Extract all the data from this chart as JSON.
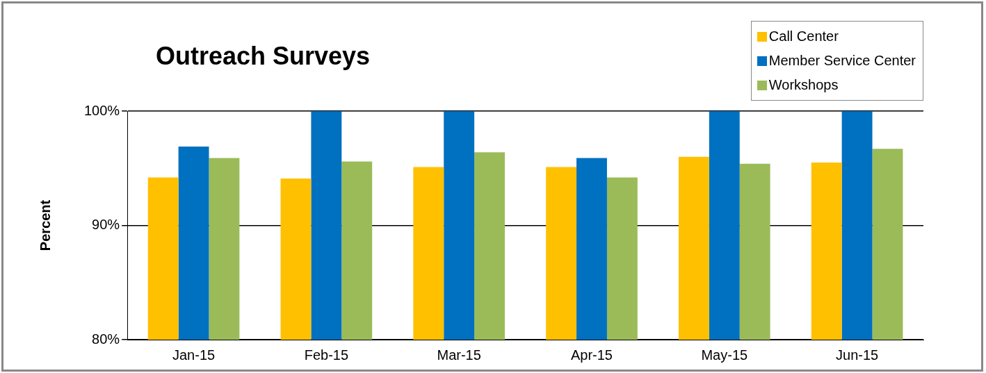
{
  "chart_data": {
    "type": "bar",
    "title": "Outreach Surveys",
    "ylabel": "Percent",
    "categories": [
      "Jan-15",
      "Feb-15",
      "Mar-15",
      "Apr-15",
      "May-15",
      "Jun-15"
    ],
    "series": [
      {
        "name": "Call Center",
        "color": "#ffc000",
        "values": [
          94.2,
          94.1,
          95.1,
          95.1,
          96.0,
          95.5
        ]
      },
      {
        "name": "Member Service Center",
        "color": "#0070c0",
        "values": [
          96.9,
          100,
          100,
          95.9,
          100,
          100
        ]
      },
      {
        "name": "Workshops",
        "color": "#9bbb59",
        "values": [
          95.9,
          95.6,
          96.4,
          94.2,
          95.4,
          96.7
        ]
      }
    ],
    "ylim": [
      80,
      100
    ],
    "yticks": [
      {
        "value": 80,
        "label": "80%"
      },
      {
        "value": 90,
        "label": "90%"
      },
      {
        "value": 100,
        "label": "100%"
      }
    ],
    "grid": "y",
    "legend": "top right"
  }
}
